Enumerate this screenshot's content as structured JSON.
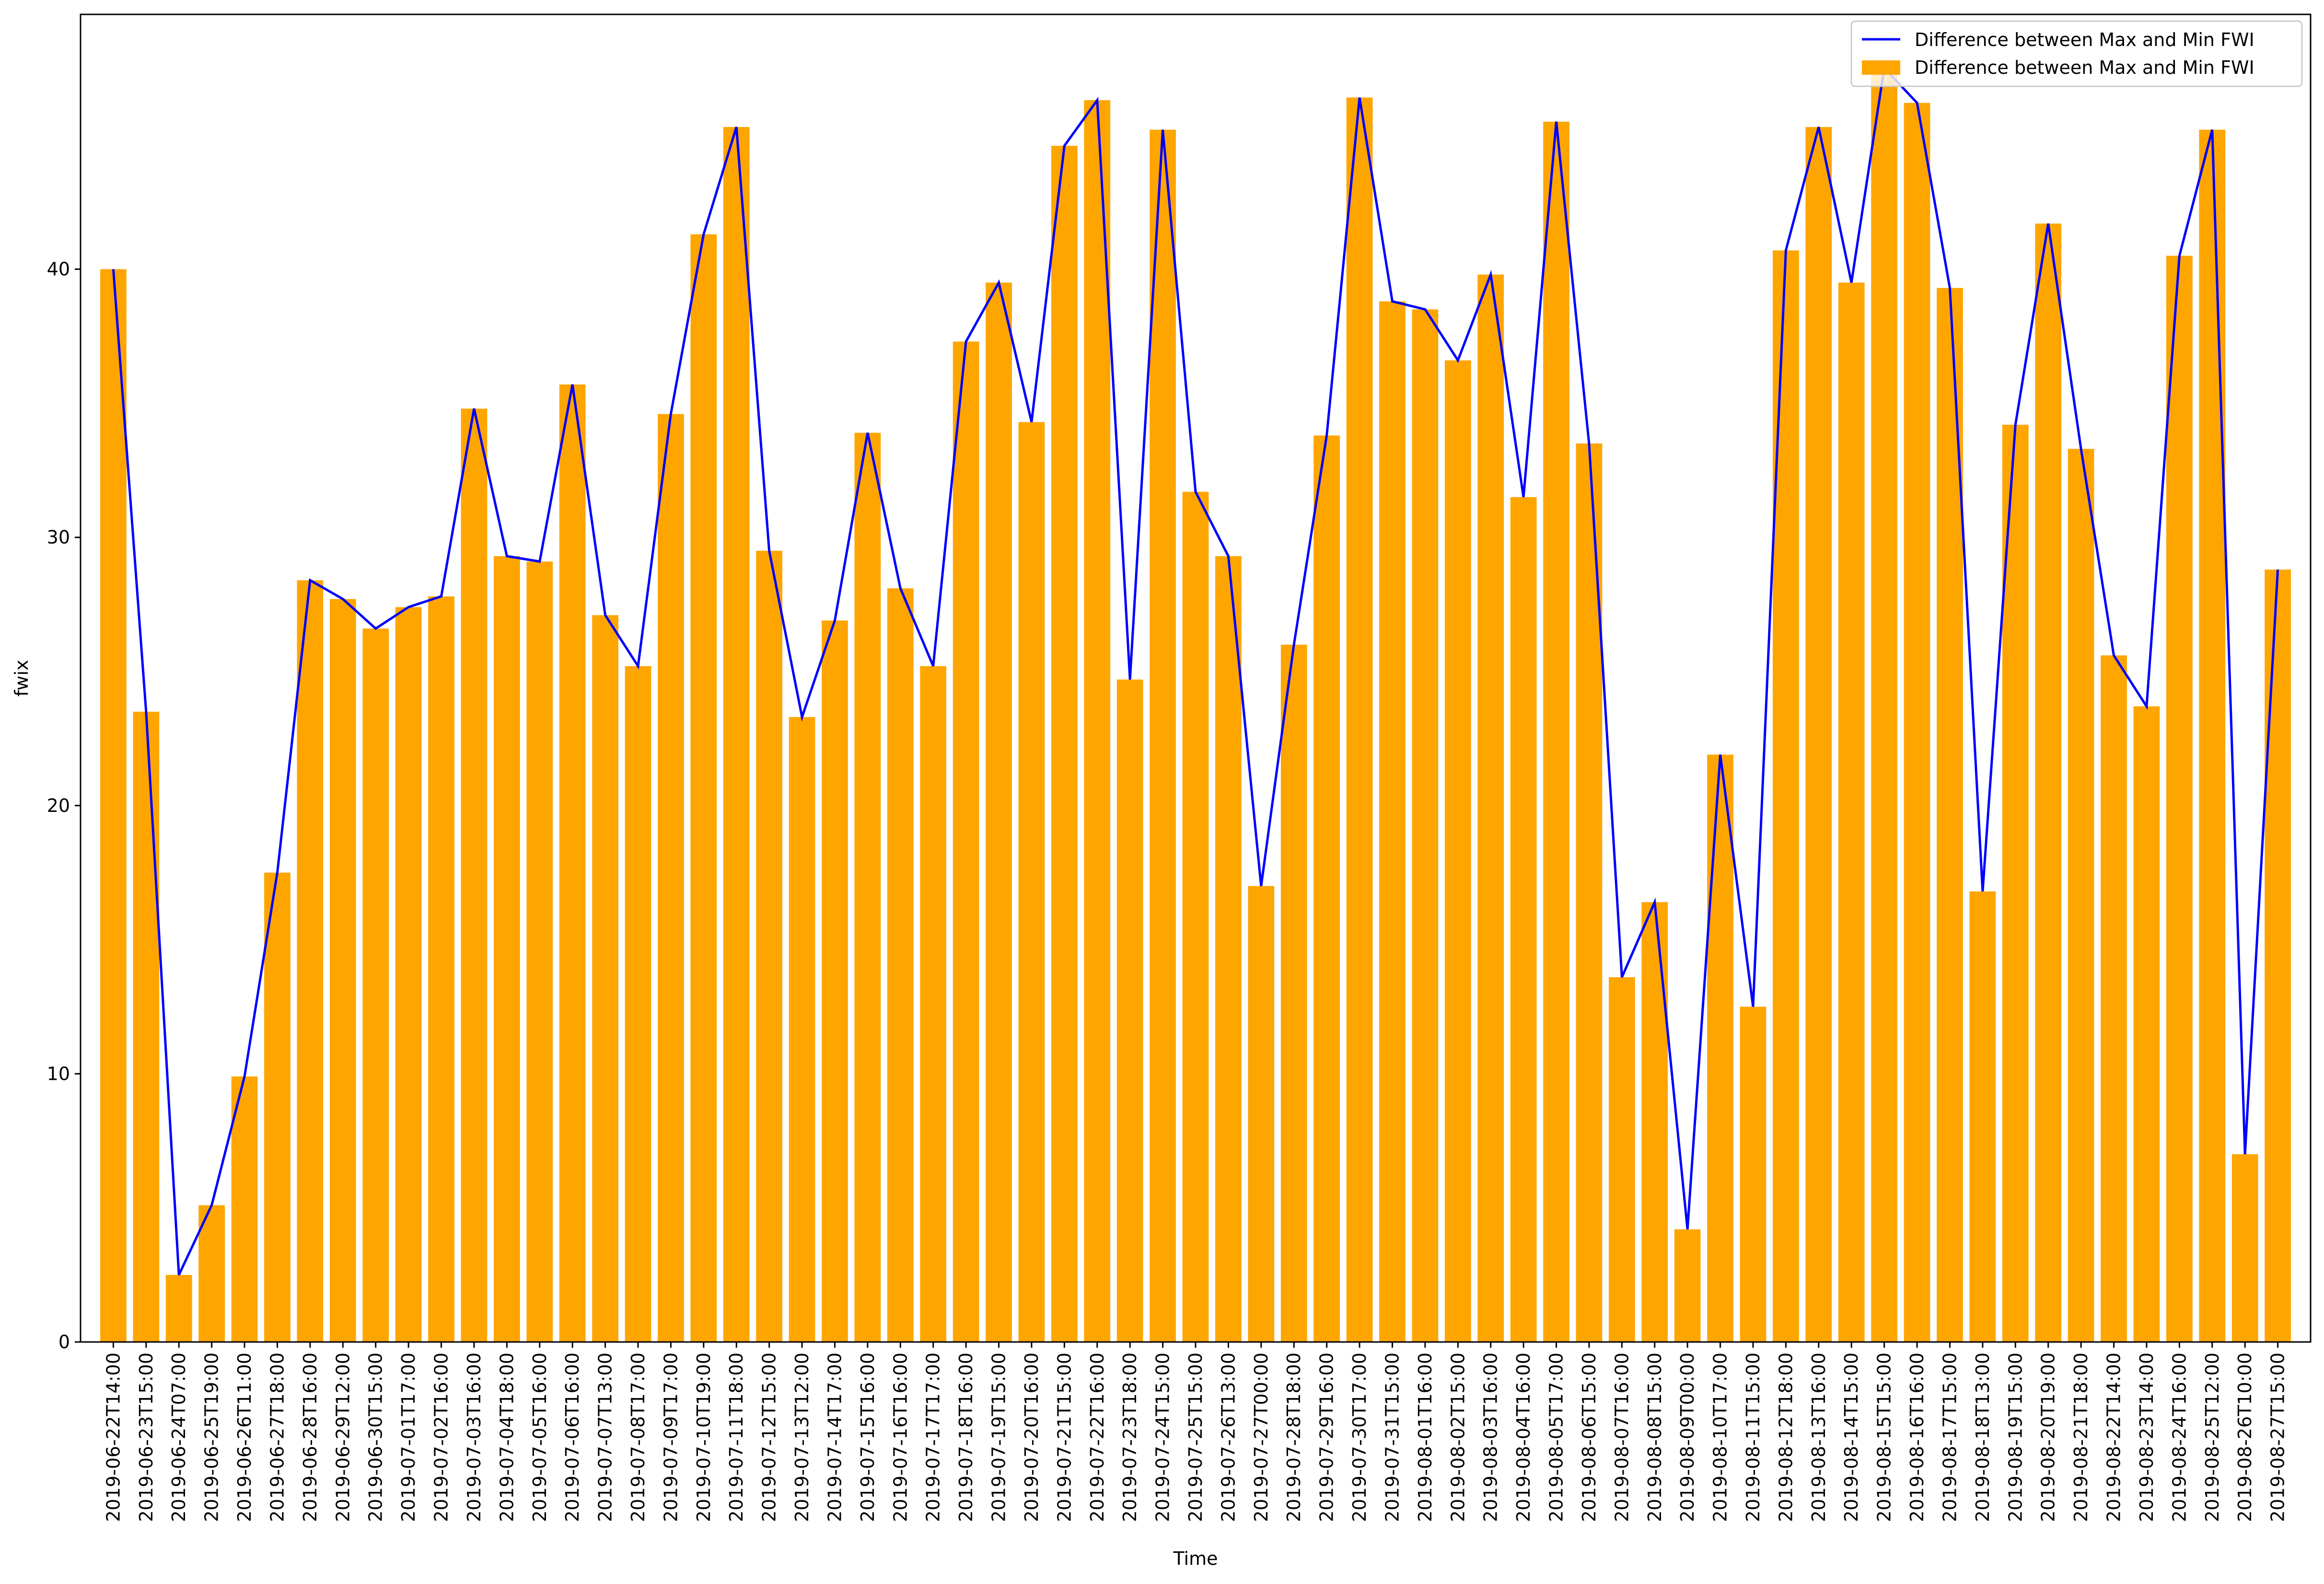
{
  "chart_data": {
    "type": "bar",
    "xlabel": "Time",
    "ylabel": "fwix",
    "ylim": [
      0,
      49.5
    ],
    "yticks": [
      0,
      10,
      20,
      30,
      40
    ],
    "grid": false,
    "legend_position": "top-right",
    "categories": [
      "2019-06-22T14:00",
      "2019-06-23T15:00",
      "2019-06-24T07:00",
      "2019-06-25T19:00",
      "2019-06-26T11:00",
      "2019-06-27T18:00",
      "2019-06-28T16:00",
      "2019-06-29T12:00",
      "2019-06-30T15:00",
      "2019-07-01T17:00",
      "2019-07-02T16:00",
      "2019-07-03T16:00",
      "2019-07-04T18:00",
      "2019-07-05T16:00",
      "2019-07-06T16:00",
      "2019-07-07T13:00",
      "2019-07-08T17:00",
      "2019-07-09T17:00",
      "2019-07-10T19:00",
      "2019-07-11T18:00",
      "2019-07-12T15:00",
      "2019-07-13T12:00",
      "2019-07-14T17:00",
      "2019-07-15T16:00",
      "2019-07-16T16:00",
      "2019-07-17T17:00",
      "2019-07-18T16:00",
      "2019-07-19T15:00",
      "2019-07-20T16:00",
      "2019-07-21T15:00",
      "2019-07-22T16:00",
      "2019-07-23T18:00",
      "2019-07-24T15:00",
      "2019-07-25T15:00",
      "2019-07-26T13:00",
      "2019-07-27T00:00",
      "2019-07-28T18:00",
      "2019-07-29T16:00",
      "2019-07-30T17:00",
      "2019-07-31T15:00",
      "2019-08-01T16:00",
      "2019-08-02T15:00",
      "2019-08-03T16:00",
      "2019-08-04T16:00",
      "2019-08-05T17:00",
      "2019-08-06T15:00",
      "2019-08-07T16:00",
      "2019-08-08T15:00",
      "2019-08-09T00:00",
      "2019-08-10T17:00",
      "2019-08-11T15:00",
      "2019-08-12T18:00",
      "2019-08-13T16:00",
      "2019-08-14T15:00",
      "2019-08-15T15:00",
      "2019-08-16T16:00",
      "2019-08-17T15:00",
      "2019-08-18T13:00",
      "2019-08-19T15:00",
      "2019-08-20T19:00",
      "2019-08-21T18:00",
      "2019-08-22T14:00",
      "2019-08-23T14:00",
      "2019-08-24T16:00",
      "2019-08-25T12:00",
      "2019-08-26T10:00",
      "2019-08-27T15:00"
    ],
    "series": [
      {
        "name": "Difference between Max and Min FWI",
        "kind": "bar",
        "color": "#FFA500",
        "values": [
          40.0,
          23.5,
          2.5,
          5.1,
          9.9,
          17.5,
          28.4,
          27.7,
          26.6,
          27.4,
          27.8,
          34.8,
          29.3,
          29.1,
          35.7,
          27.1,
          25.2,
          34.6,
          41.3,
          45.3,
          29.5,
          23.3,
          26.9,
          33.9,
          28.1,
          25.2,
          37.3,
          39.5,
          34.3,
          44.6,
          46.3,
          24.7,
          45.2,
          31.7,
          29.3,
          17.0,
          26.0,
          33.8,
          46.4,
          38.8,
          38.5,
          36.6,
          39.8,
          31.5,
          45.5,
          33.5,
          13.6,
          16.4,
          4.2,
          21.9,
          12.5,
          40.7,
          45.3,
          39.5,
          47.5,
          46.2,
          39.3,
          16.8,
          34.2,
          41.7,
          33.3,
          25.6,
          23.7,
          40.5,
          45.2,
          7.0,
          28.8
        ]
      },
      {
        "name": "Difference between Max and Min FWI",
        "kind": "line",
        "color": "#0000FF",
        "values": [
          40.0,
          23.5,
          2.5,
          5.1,
          9.9,
          17.5,
          28.4,
          27.7,
          26.6,
          27.4,
          27.8,
          34.8,
          29.3,
          29.1,
          35.7,
          27.1,
          25.2,
          34.6,
          41.3,
          45.3,
          29.5,
          23.3,
          26.9,
          33.9,
          28.1,
          25.2,
          37.3,
          39.5,
          34.3,
          44.6,
          46.3,
          24.7,
          45.2,
          31.7,
          29.3,
          17.0,
          26.0,
          33.8,
          46.4,
          38.8,
          38.5,
          36.6,
          39.8,
          31.5,
          45.5,
          33.5,
          13.6,
          16.4,
          4.2,
          21.9,
          12.5,
          40.7,
          45.3,
          39.5,
          47.5,
          46.2,
          39.3,
          16.8,
          34.2,
          41.7,
          33.3,
          25.6,
          23.7,
          40.5,
          45.2,
          7.0,
          28.8
        ]
      }
    ]
  }
}
